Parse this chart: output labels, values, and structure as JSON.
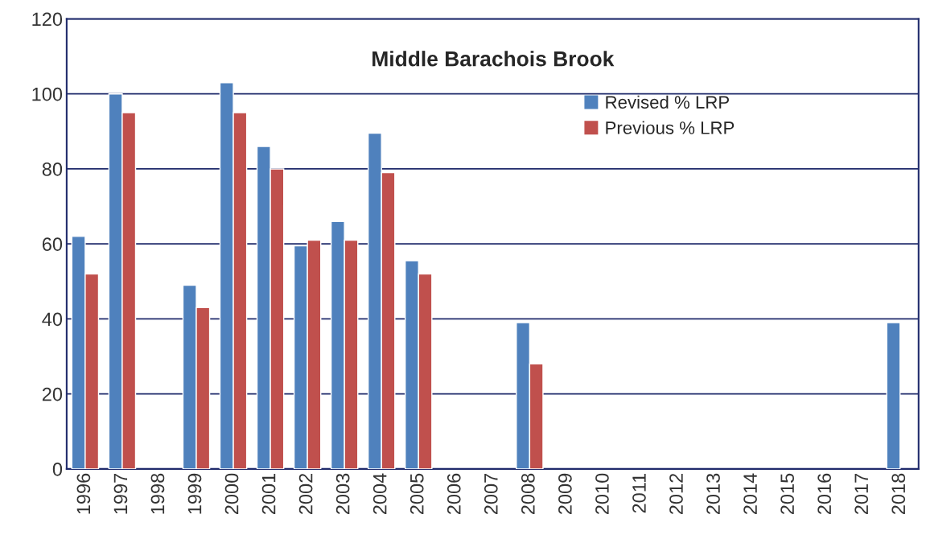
{
  "chart_data": {
    "type": "bar",
    "title": "Middle Barachois Brook",
    "categories": [
      "1996",
      "1997",
      "1998",
      "1999",
      "2000",
      "2001",
      "2002",
      "2003",
      "2004",
      "2005",
      "2006",
      "2007",
      "2008",
      "2009",
      "2010",
      "2011",
      "2012",
      "2013",
      "2014",
      "2015",
      "2016",
      "2017",
      "2018"
    ],
    "series": [
      {
        "name": "Revised % LRP",
        "color": "#4f81bd",
        "values": [
          62,
          100,
          null,
          49,
          103,
          86,
          59.5,
          66,
          89.5,
          55.5,
          null,
          null,
          39,
          null,
          null,
          null,
          null,
          null,
          null,
          null,
          null,
          null,
          39
        ]
      },
      {
        "name": "Previous % LRP",
        "color": "#c0504d",
        "values": [
          52,
          95,
          null,
          43,
          95,
          80,
          61,
          61,
          79,
          52,
          null,
          null,
          28,
          null,
          null,
          null,
          null,
          null,
          null,
          null,
          null,
          null,
          null
        ]
      }
    ],
    "ylim": [
      0,
      120
    ],
    "yticks": [
      0,
      20,
      40,
      60,
      80,
      100,
      120
    ],
    "grid": "y",
    "legend": "top right"
  }
}
